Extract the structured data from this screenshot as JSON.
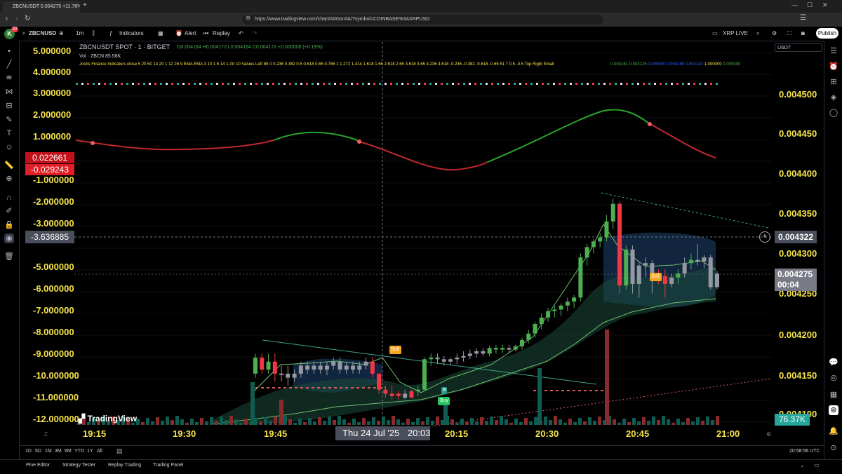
{
  "browser": {
    "tab_title": "ZBCNUSDT 0.004275 +11.76%",
    "url": "https://www.tradingview.com/chart/AttGsmlA/?symbol=COINBASE%3AXRPUSD"
  },
  "toolbar": {
    "avatar_badge": "32",
    "symbol": "ZBCNUSD",
    "interval": "1m",
    "indicators_label": "Indicators",
    "alert_label": "Alert",
    "replay_label": "Replay",
    "layout_name": "XRP LIVE",
    "publish_label": "Publish",
    "currency": "USDT"
  },
  "legend": {
    "title": "ZBCNUSDT SPOT · 1 · BITGET",
    "ohlc": "O0.004164 H0.004172 L0.004164 C0.004172 +0.000008 (+0.19%)",
    "volume": "Vol · ZBCN  85.58K",
    "indicator": "Joshs Finance Indicators close 5 20 50 14 20 1 12 26 9 EMA EMA 3 10 1 6 14 1 Atr 10 Values Left 85 0 0.236 0.382 0.5 0.618 0.65 0.786 1 1.272 1.414 1.618 1.65 2.618 2.65 3.618 3.65 4.236 4.618 -0.236 -0.382 -0.618 -0.65 51 7 0.5 -0.5 Top Right Small",
    "indicator_values": [
      "0.004161",
      "0.004125",
      "0.000000",
      "0.004169",
      "0.004143",
      "1.000000",
      "0.000000"
    ]
  },
  "left_axis": {
    "labels": [
      "5.000000",
      "4.000000",
      "3.000000",
      "2.000000",
      "1.000000",
      "-1.000000",
      "-2.000000",
      "-3.000000",
      "-5.000000",
      "-6.000000",
      "-7.000000",
      "-8.000000",
      "-9.000000",
      "-10.000000",
      "-11.000000",
      "-12.000000"
    ],
    "badge_green": "0.022661",
    "badge_red": "-0.029243",
    "crosshair_value": "-3.636885"
  },
  "right_axis": {
    "labels": [
      "0.004500",
      "0.004450",
      "0.004400",
      "0.004350",
      "0.004300",
      "0.004250",
      "0.004200",
      "0.004150",
      "0.004100"
    ],
    "crosshair_price": "0.004322",
    "last_price": "0.004275",
    "countdown": "00:04",
    "volume_badge": "76.37K"
  },
  "time_axis": {
    "labels": [
      "19:15",
      "19:30",
      "19:45",
      "20:15",
      "20:30",
      "20:45",
      "21:00"
    ],
    "crosshair_date": "Thu 24 Jul '25",
    "crosshair_time": "20:03"
  },
  "markers": {
    "sell": "Sell",
    "buy": "Buy",
    "b": "B"
  },
  "watermark": "TradingView",
  "ranges": [
    "1D",
    "5D",
    "1M",
    "3M",
    "6M",
    "YTD",
    "1Y",
    "All"
  ],
  "clock": "20:58:56 UTC",
  "bottom_tabs": [
    "Pine Editor",
    "Strategy Tester",
    "Replay Trading",
    "Trading Panel"
  ],
  "colors": {
    "up": "#4caf50",
    "down": "#f23645",
    "neutral": "#9598a1",
    "label": "#f5e34b",
    "accent": "#2962ff"
  },
  "chart_data": {
    "type": "candlestick",
    "symbol": "ZBCNUSDT",
    "candles": [
      [
        0.00415,
        0.004175,
        0.004145,
        0.00417,
        "up"
      ],
      [
        0.00417,
        0.004175,
        0.00415,
        0.004155,
        "down"
      ],
      [
        0.004155,
        0.004175,
        0.00415,
        0.004165,
        "up"
      ],
      [
        0.004165,
        0.004175,
        0.00414,
        0.00415,
        "down"
      ],
      [
        0.00415,
        0.00416,
        0.00414,
        0.00415,
        "neutral"
      ],
      [
        0.00415,
        0.00416,
        0.004135,
        0.004145,
        "neutral"
      ],
      [
        0.004145,
        0.004155,
        0.00414,
        0.00415,
        "neutral"
      ],
      [
        0.00415,
        0.004165,
        0.004145,
        0.00416,
        "neutral"
      ],
      [
        0.00416,
        0.004165,
        0.00415,
        0.004155,
        "neutral"
      ],
      [
        0.004155,
        0.004165,
        0.00415,
        0.00416,
        "neutral"
      ],
      [
        0.00416,
        0.004165,
        0.00415,
        0.004155,
        "neutral"
      ],
      [
        0.004155,
        0.004165,
        0.004148,
        0.00416,
        "neutral"
      ],
      [
        0.00416,
        0.00417,
        0.004155,
        0.004165,
        "neutral"
      ],
      [
        0.004165,
        0.00417,
        0.00415,
        0.004155,
        "neutral"
      ],
      [
        0.004155,
        0.004165,
        0.00415,
        0.00416,
        "neutral"
      ],
      [
        0.00416,
        0.004165,
        0.00415,
        0.004155,
        "neutral"
      ],
      [
        0.004155,
        0.004165,
        0.00415,
        0.00416,
        "neutral"
      ],
      [
        0.00416,
        0.00417,
        0.004155,
        0.004165,
        "neutral"
      ],
      [
        0.004165,
        0.00417,
        0.004145,
        0.00415,
        "down"
      ],
      [
        0.00415,
        0.00415,
        0.004125,
        0.00413,
        "down"
      ],
      [
        0.00413,
        0.004135,
        0.00412,
        0.004125,
        "down"
      ],
      [
        0.004125,
        0.004135,
        0.004118,
        0.004122,
        "down"
      ],
      [
        0.004122,
        0.004128,
        0.004118,
        0.004125,
        "down"
      ],
      [
        0.004125,
        0.00413,
        0.004118,
        0.00412,
        "neutral"
      ],
      [
        0.00412,
        0.00413,
        0.00412,
        0.004128,
        "down"
      ],
      [
        0.004128,
        0.004135,
        0.004122,
        0.00413,
        "up"
      ],
      [
        0.00413,
        0.00417,
        0.004128,
        0.004168,
        "up"
      ],
      [
        0.004168,
        0.004175,
        0.00416,
        0.00417,
        "up"
      ],
      [
        0.00417,
        0.004175,
        0.004162,
        0.004168,
        "neutral"
      ],
      [
        0.004168,
        0.004172,
        0.00416,
        0.004165,
        "neutral"
      ],
      [
        0.004165,
        0.00417,
        0.00416,
        0.004168,
        "neutral"
      ],
      [
        0.004168,
        0.004175,
        0.004162,
        0.00417,
        "neutral"
      ],
      [
        0.00417,
        0.004178,
        0.004165,
        0.004172,
        "neutral"
      ],
      [
        0.004172,
        0.00418,
        0.004168,
        0.004175,
        "neutral"
      ],
      [
        0.004175,
        0.004182,
        0.00417,
        0.004178,
        "neutral"
      ],
      [
        0.004178,
        0.004182,
        0.004172,
        0.004175,
        "neutral"
      ],
      [
        0.004175,
        0.004185,
        0.004172,
        0.004182,
        "up"
      ],
      [
        0.004182,
        0.004186,
        0.004175,
        0.00418,
        "up"
      ],
      [
        0.00418,
        0.004186,
        0.004176,
        0.004182,
        "up"
      ],
      [
        0.004182,
        0.004186,
        0.004176,
        0.00418,
        "neutral"
      ],
      [
        0.00418,
        0.004186,
        0.004178,
        0.004184,
        "up"
      ],
      [
        0.004184,
        0.004195,
        0.00418,
        0.004192,
        "up"
      ],
      [
        0.004192,
        0.004205,
        0.004188,
        0.0042,
        "up"
      ],
      [
        0.0042,
        0.004215,
        0.004195,
        0.004212,
        "up"
      ],
      [
        0.004212,
        0.004225,
        0.004205,
        0.00422,
        "up"
      ],
      [
        0.00422,
        0.004232,
        0.004215,
        0.004228,
        "up"
      ],
      [
        0.004228,
        0.004235,
        0.00422,
        0.00423,
        "up"
      ],
      [
        0.00423,
        0.004238,
        0.004222,
        0.004235,
        "up"
      ],
      [
        0.004235,
        0.004245,
        0.004228,
        0.00424,
        "up"
      ],
      [
        0.00424,
        0.004248,
        0.004232,
        0.004245,
        "up"
      ],
      [
        0.004245,
        0.0043,
        0.00424,
        0.004295,
        "up"
      ],
      [
        0.004295,
        0.004312,
        0.004285,
        0.004308,
        "up"
      ],
      [
        0.004308,
        0.004318,
        0.0043,
        0.004315,
        "up"
      ],
      [
        0.004315,
        0.004325,
        0.004308,
        0.00432,
        "up"
      ],
      [
        0.00432,
        0.004348,
        0.004315,
        0.00434,
        "up"
      ],
      [
        0.00434,
        0.004368,
        0.00433,
        0.004362,
        "up"
      ],
      [
        0.004362,
        0.004365,
        0.00425,
        0.00426,
        "down"
      ],
      [
        0.00426,
        0.00431,
        0.004255,
        0.004305,
        "up"
      ],
      [
        0.004305,
        0.00431,
        0.00425,
        0.004262,
        "neutral"
      ],
      [
        0.004262,
        0.00429,
        0.004245,
        0.004285,
        "neutral"
      ],
      [
        0.004285,
        0.004295,
        0.00427,
        0.004288,
        "neutral"
      ],
      [
        0.004288,
        0.004292,
        0.00425,
        0.004268,
        "neutral"
      ],
      [
        0.004268,
        0.00428,
        0.004262,
        0.004272,
        "down"
      ],
      [
        0.004272,
        0.00428,
        0.004245,
        0.004262,
        "down"
      ],
      [
        0.004262,
        0.004275,
        0.004258,
        0.00427,
        "neutral"
      ],
      [
        0.00427,
        0.00428,
        0.004262,
        0.004275,
        "up"
      ],
      [
        0.004275,
        0.004295,
        0.00427,
        0.004288,
        "neutral"
      ],
      [
        0.004288,
        0.0043,
        0.00428,
        0.004292,
        "up"
      ],
      [
        0.004292,
        0.004312,
        0.004285,
        0.00429,
        "neutral"
      ],
      [
        0.00429,
        0.004298,
        0.004282,
        0.004295,
        "neutral"
      ],
      [
        0.004295,
        0.004298,
        0.004255,
        0.004258,
        "neutral"
      ],
      [
        0.004258,
        0.004278,
        0.004255,
        0.004275,
        "neutral"
      ]
    ]
  }
}
